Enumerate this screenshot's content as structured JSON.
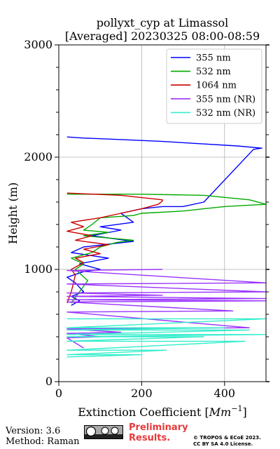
{
  "chart_data": {
    "type": "line",
    "title_line1": "pollyxt_cyp at Limassol",
    "title_line2": "[Averaged] 20230325 08:00-08:59",
    "xlabel_prefix": "Extinction Coefficient [",
    "xlabel_unit": "Mm",
    "xlabel_exp": "−1",
    "xlabel_suffix": "]",
    "ylabel": "Height (m)",
    "xlim": [
      0,
      500
    ],
    "ylim": [
      0,
      3000
    ],
    "xticks": [
      0,
      200,
      400
    ],
    "yticks": [
      0,
      1000,
      2000,
      3000
    ],
    "grid": true,
    "legend_position": "top-right",
    "series": [
      {
        "name": "355 nm",
        "color": "#0000ff",
        "x": [
          20,
          60,
          130,
          250,
          340,
          430,
          490,
          470,
          350,
          300,
          250,
          200,
          150,
          180,
          100,
          150,
          80,
          180,
          60,
          30,
          120,
          50,
          100,
          60,
          20,
          40,
          60,
          30,
          50,
          30
        ],
        "y": [
          2180,
          2170,
          2160,
          2140,
          2120,
          2100,
          2080,
          2070,
          1600,
          1560,
          1560,
          1540,
          1500,
          1420,
          1380,
          1350,
          1300,
          1250,
          1200,
          1150,
          1100,
          1050,
          1000,
          980,
          930,
          880,
          800,
          760,
          720,
          680
        ]
      },
      {
        "name": "532 nm",
        "color": "#00aa00",
        "x": [
          20,
          200,
          350,
          460,
          500,
          400,
          350,
          300,
          200,
          180,
          100,
          80,
          60,
          120,
          60,
          180,
          140,
          100,
          80,
          30,
          60,
          40,
          70,
          50,
          30
        ],
        "y": [
          1670,
          1670,
          1660,
          1620,
          1580,
          1560,
          1540,
          1520,
          1500,
          1480,
          1460,
          1400,
          1350,
          1330,
          1300,
          1260,
          1240,
          1200,
          1150,
          1100,
          1050,
          1000,
          900,
          800,
          700
        ]
      },
      {
        "name": "1064 nm",
        "color": "#cc0000",
        "x": [
          20,
          150,
          250,
          250,
          240,
          200,
          150,
          100,
          30,
          60,
          20,
          80,
          40,
          120,
          60,
          100,
          40,
          60,
          30,
          40,
          30,
          20
        ],
        "y": [
          1680,
          1660,
          1620,
          1610,
          1580,
          1540,
          1500,
          1460,
          1420,
          1380,
          1340,
          1300,
          1260,
          1220,
          1180,
          1140,
          1100,
          1060,
          1000,
          950,
          800,
          700
        ]
      },
      {
        "name": "355 nm (NR)",
        "color": "#9933ff",
        "x": [
          250,
          20,
          500,
          20,
          500,
          20,
          250,
          20,
          500,
          20,
          500,
          20,
          420,
          20,
          460,
          20,
          150,
          20,
          100,
          20,
          60
        ],
        "y": [
          1000,
          990,
          880,
          870,
          800,
          790,
          770,
          760,
          740,
          730,
          720,
          710,
          630,
          620,
          480,
          470,
          440,
          430,
          400,
          390,
          300
        ]
      },
      {
        "name": "532 nm (NR)",
        "color": "#33eecc",
        "x": [
          20,
          500,
          20,
          400,
          20,
          460,
          20,
          500,
          20,
          350,
          20,
          450,
          20,
          260,
          20,
          200,
          20
        ],
        "y": [
          560,
          560,
          480,
          480,
          460,
          460,
          420,
          420,
          400,
          400,
          360,
          360,
          280,
          280,
          240,
          240,
          220
        ]
      }
    ]
  },
  "footer": {
    "version": "Version: 3.6",
    "method": "Method: Raman",
    "preliminary_line1": "Preliminary",
    "preliminary_line2": "Results.",
    "copyright_line1": "© TROPOS & ECoE 2023.",
    "copyright_line2": "CC BY SA 4.0 License."
  }
}
